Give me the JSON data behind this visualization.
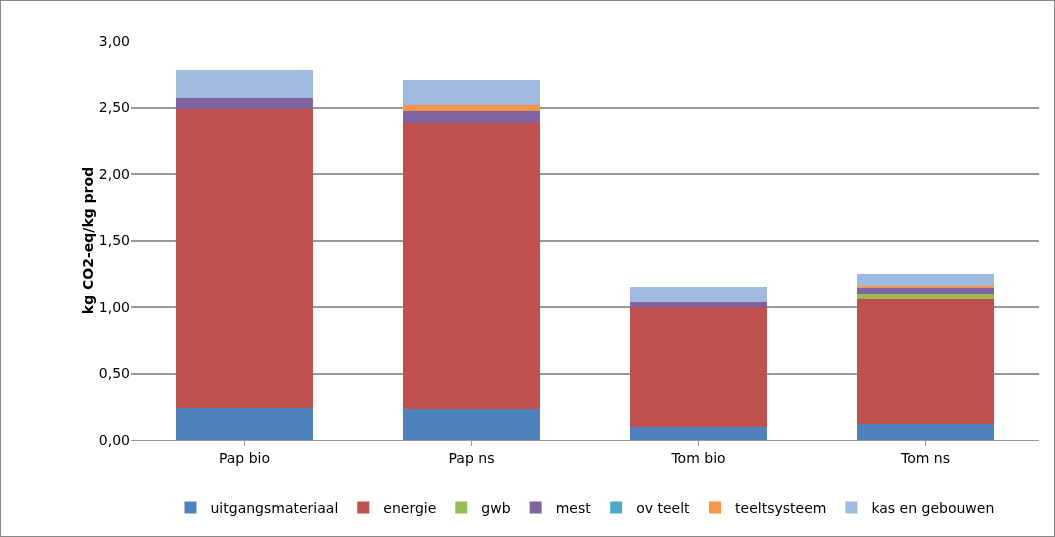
{
  "chart_data": {
    "type": "bar",
    "stacked": true,
    "ylabel": "kg CO2-eq/kg prod",
    "categories": [
      "Pap bio",
      "Pap ns",
      "Tom bio",
      "Tom ns"
    ],
    "series": [
      {
        "name": "uitgangsmateriaal",
        "color": "#4f81bd",
        "values": [
          0.24,
          0.23,
          0.1,
          0.12
        ]
      },
      {
        "name": "energie",
        "color": "#c0504d",
        "values": [
          2.25,
          2.15,
          0.9,
          0.94
        ]
      },
      {
        "name": "gwb",
        "color": "#9bbb59",
        "values": [
          0,
          0,
          0,
          0.04
        ]
      },
      {
        "name": "mest",
        "color": "#8064a2",
        "values": [
          0.08,
          0.09,
          0.04,
          0.04
        ]
      },
      {
        "name": "ov teelt",
        "color": "#4bacc6",
        "values": [
          0,
          0,
          0,
          0
        ]
      },
      {
        "name": "teeltsysteem",
        "color": "#f79646",
        "values": [
          0,
          0.05,
          0,
          0.02
        ]
      },
      {
        "name": "kas en gebouwen",
        "color": "#9fb9df",
        "values": [
          0.21,
          0.19,
          0.11,
          0.09
        ]
      }
    ],
    "ylim": [
      0,
      3
    ],
    "yticks": [
      {
        "value": 0,
        "label": "0,00"
      },
      {
        "value": 0.5,
        "label": "0,50"
      },
      {
        "value": 1,
        "label": "1,00"
      },
      {
        "value": 1.5,
        "label": "1,50"
      },
      {
        "value": 2,
        "label": "2,00"
      },
      {
        "value": 2.5,
        "label": "2,50"
      },
      {
        "value": 3,
        "label": "3,00"
      }
    ],
    "grid": "y",
    "legend": "bottom"
  }
}
